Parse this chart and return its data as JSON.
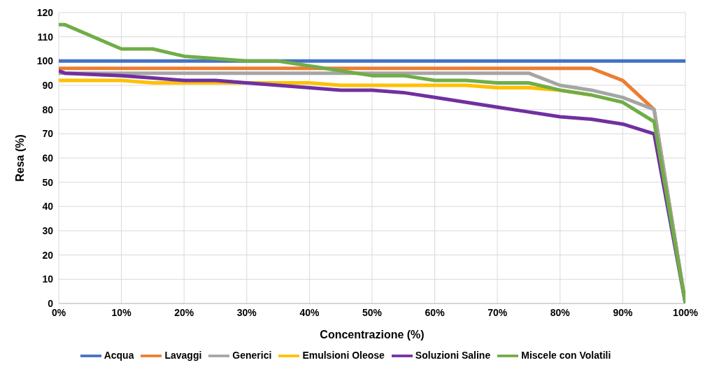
{
  "chart_data": {
    "type": "line",
    "xlabel": "Concentrazione (%)",
    "ylabel": "Resa (%)",
    "x": [
      0,
      1,
      10,
      15,
      20,
      25,
      30,
      35,
      40,
      45,
      50,
      55,
      60,
      65,
      70,
      75,
      80,
      85,
      90,
      95,
      100
    ],
    "xlim": [
      0,
      100
    ],
    "xticks": [
      {
        "value": 0,
        "label": "0%"
      },
      {
        "value": 10,
        "label": "10%"
      },
      {
        "value": 20,
        "label": "20%"
      },
      {
        "value": 30,
        "label": "30%"
      },
      {
        "value": 40,
        "label": "40%"
      },
      {
        "value": 50,
        "label": "50%"
      },
      {
        "value": 60,
        "label": "60%"
      },
      {
        "value": 70,
        "label": "70%"
      },
      {
        "value": 80,
        "label": "80%"
      },
      {
        "value": 90,
        "label": "90%"
      },
      {
        "value": 100,
        "label": "100%"
      }
    ],
    "ylim": [
      0,
      120
    ],
    "yticks": [
      0,
      10,
      20,
      30,
      40,
      50,
      60,
      70,
      80,
      90,
      100,
      110,
      120
    ],
    "grid": true,
    "legend": "bottom",
    "marker": "none",
    "line_style": "solid",
    "series": [
      {
        "name": "Acqua",
        "color": "#4472c4",
        "values": [
          100,
          100,
          100,
          100,
          100,
          100,
          100,
          100,
          100,
          100,
          100,
          100,
          100,
          100,
          100,
          100,
          100,
          100,
          100,
          100,
          100
        ]
      },
      {
        "name": "Lavaggi",
        "color": "#ed7d31",
        "values": [
          97,
          97,
          97,
          97,
          97,
          97,
          97,
          97,
          97,
          97,
          97,
          97,
          97,
          97,
          97,
          97,
          97,
          97,
          92,
          80,
          0
        ]
      },
      {
        "name": "Generici",
        "color": "#a5a5a5",
        "values": [
          95,
          95,
          95,
          95,
          95,
          95,
          95,
          95,
          95,
          95,
          95,
          95,
          95,
          95,
          95,
          95,
          90,
          88,
          85,
          80,
          0
        ]
      },
      {
        "name": "Emulsioni Oleose",
        "color": "#ffc000",
        "values": [
          92,
          92,
          92,
          91,
          91,
          91,
          91,
          91,
          91,
          90,
          90,
          90,
          90,
          90,
          89,
          89,
          88,
          86,
          null,
          null,
          null
        ]
      },
      {
        "name": "Soluzioni Saline",
        "color": "#7030a0",
        "values": [
          96,
          95,
          94,
          93,
          92,
          92,
          91,
          90,
          89,
          88,
          88,
          87,
          85,
          83,
          81,
          79,
          77,
          76,
          74,
          70,
          0
        ]
      },
      {
        "name": "Miscele con Volatili",
        "color": "#70ad47",
        "values": [
          115,
          115,
          105,
          105,
          102,
          101,
          100,
          100,
          98,
          96,
          94,
          94,
          92,
          92,
          91,
          91,
          88,
          86,
          83,
          75,
          0
        ]
      }
    ]
  }
}
